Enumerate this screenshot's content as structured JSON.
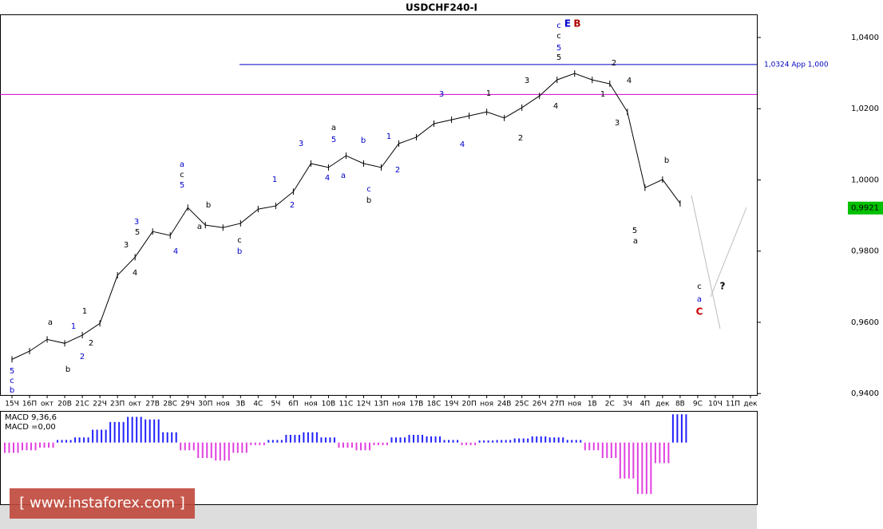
{
  "chart_data": {
    "type": "line",
    "title": "USDCHF240-I",
    "categories": [
      "15Ч",
      "16П",
      "окт",
      "20В",
      "21С",
      "22Ч",
      "23П",
      "окт",
      "27В",
      "28С",
      "29Ч",
      "30П",
      "ноя",
      "3В",
      "4С",
      "5Ч",
      "6П",
      "ноя",
      "10В",
      "11С",
      "12Ч",
      "13П",
      "ноя",
      "17В",
      "18С",
      "19Ч",
      "20П",
      "ноя",
      "24В",
      "25С",
      "26Ч",
      "27П",
      "ноя",
      "1В",
      "2С",
      "3Ч",
      "4П",
      "дек",
      "8В",
      "9С",
      "10Ч",
      "11П",
      "дек"
    ],
    "series": [
      {
        "name": "USDCHF240-I",
        "color": "#000000",
        "values": [
          0.9496,
          0.9519,
          0.9552,
          0.9541,
          0.9564,
          0.9597,
          0.9732,
          0.9783,
          0.9855,
          0.9844,
          0.9922,
          0.9873,
          0.9866,
          0.9878,
          0.9918,
          0.9927,
          0.9967,
          1.0046,
          1.0035,
          1.0068,
          1.0046,
          1.0035,
          1.0102,
          1.012,
          1.0158,
          1.0169,
          1.018,
          1.0191,
          1.0174,
          1.0203,
          1.0236,
          1.0281,
          1.0299,
          1.0281,
          1.027,
          1.0191,
          0.9978,
          1.0001,
          0.9934,
          null,
          null,
          null,
          null
        ]
      }
    ],
    "ylim": [
      0.9396,
      1.0465
    ],
    "yticks": [
      {
        "value": 1.04,
        "label": "1,0400"
      },
      {
        "value": 1.02,
        "label": "1,0200"
      },
      {
        "value": 1.0,
        "label": "1,0000"
      },
      {
        "value": 0.98,
        "label": "0,9800"
      },
      {
        "value": 0.96,
        "label": "0,9600"
      },
      {
        "value": 0.94,
        "label": "0,9400"
      }
    ],
    "last_price": {
      "value": 0.9921,
      "label": "0,9921",
      "color": "#00c000"
    },
    "levels": [
      {
        "value": 1.0324,
        "label": "1,0324 App 1,000",
        "color": "#0000c0"
      },
      {
        "value": 1.024,
        "color": "#d000d0"
      }
    ],
    "annotations": [
      {
        "text": "5",
        "color": "#0000cc"
      },
      {
        "text": "c",
        "color": "#0000cc"
      },
      {
        "text": "b",
        "color": "#0000cc"
      },
      {
        "text": "a",
        "color": "#000000"
      },
      {
        "text": "b",
        "color": "#000000"
      },
      {
        "text": "1",
        "color": "#0000cc"
      },
      {
        "text": "2",
        "color": "#0000cc"
      },
      {
        "text": "1",
        "color": "#000000"
      },
      {
        "text": "2",
        "color": "#000000"
      },
      {
        "text": "3",
        "color": "#000000"
      },
      {
        "text": "3",
        "color": "#0000cc"
      },
      {
        "text": "5",
        "color": "#000000"
      },
      {
        "text": "4",
        "color": "#000000"
      },
      {
        "text": "4",
        "color": "#0000cc"
      },
      {
        "text": "a",
        "color": "#0000cc"
      },
      {
        "text": "c",
        "color": "#000000"
      },
      {
        "text": "5",
        "color": "#0000cc"
      },
      {
        "text": "b",
        "color": "#000000"
      },
      {
        "text": "a",
        "color": "#000000"
      },
      {
        "text": "c",
        "color": "#000000"
      },
      {
        "text": "b",
        "color": "#0000cc"
      },
      {
        "text": "1",
        "color": "#0000cc"
      },
      {
        "text": "2",
        "color": "#0000cc"
      },
      {
        "text": "3",
        "color": "#0000cc"
      },
      {
        "text": "4",
        "color": "#0000cc"
      },
      {
        "text": "a",
        "color": "#000000"
      },
      {
        "text": "5",
        "color": "#0000cc"
      },
      {
        "text": "a",
        "color": "#0000cc"
      },
      {
        "text": "b",
        "color": "#0000cc"
      },
      {
        "text": "c",
        "color": "#0000cc"
      },
      {
        "text": "b",
        "color": "#000000"
      },
      {
        "text": "1",
        "color": "#0000cc"
      },
      {
        "text": "2",
        "color": "#0000cc"
      },
      {
        "text": "3",
        "color": "#0000cc"
      },
      {
        "text": "4",
        "color": "#0000cc"
      },
      {
        "text": "1",
        "color": "#000000"
      },
      {
        "text": "2",
        "color": "#000000"
      },
      {
        "text": "3",
        "color": "#000000"
      },
      {
        "text": "4",
        "color": "#000000"
      },
      {
        "text": "c",
        "color": "#0000cc"
      },
      {
        "text": "c",
        "color": "#000000"
      },
      {
        "text": "5",
        "color": "#0000cc"
      },
      {
        "text": "5",
        "color": "#000000"
      },
      {
        "text": "E",
        "color": "#0000cc"
      },
      {
        "text": "B",
        "color": "#b00000"
      },
      {
        "text": "2",
        "color": "#000000"
      },
      {
        "text": "1",
        "color": "#000000"
      },
      {
        "text": "4",
        "color": "#000000"
      },
      {
        "text": "3",
        "color": "#000000"
      },
      {
        "text": "5",
        "color": "#000000"
      },
      {
        "text": "a",
        "color": "#000000"
      },
      {
        "text": "b",
        "color": "#000000"
      },
      {
        "text": "c",
        "color": "#000000"
      },
      {
        "text": "a",
        "color": "#0000cc"
      },
      {
        "text": "C",
        "color": "#cc0000"
      },
      {
        "text": "?",
        "color": "#000000"
      }
    ],
    "macd": {
      "label": "MACD 9,36,6",
      "value_label": "MACD =0,00",
      "ylim": [
        -0.012,
        0.006
      ],
      "up_color": "#2020ff",
      "down_color": "#e040e0",
      "values": [
        -0.002,
        -0.0015,
        -0.001,
        0.0005,
        0.001,
        0.0025,
        0.004,
        0.005,
        0.0045,
        0.002,
        -0.0015,
        -0.003,
        -0.0035,
        -0.002,
        -0.0005,
        0.0005,
        0.0015,
        0.002,
        0.001,
        -0.001,
        -0.0015,
        -0.0005,
        0.001,
        0.0015,
        0.0012,
        0.0005,
        -0.0005,
        0.0004,
        0.0005,
        0.0008,
        0.0012,
        0.001,
        0.0005,
        -0.0015,
        -0.003,
        -0.007,
        -0.01,
        -0.004,
        0.0055,
        null,
        null,
        null,
        null
      ]
    },
    "watermark": "[ www.instaforex.com ]"
  }
}
